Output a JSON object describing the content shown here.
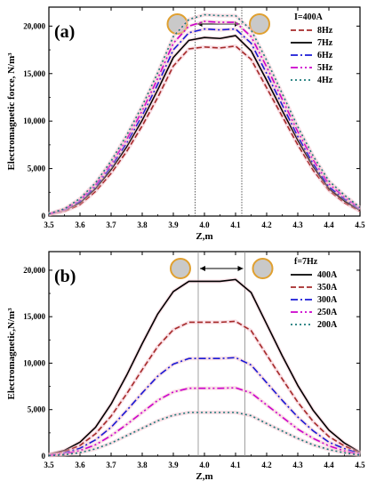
{
  "chart_data": [
    {
      "type": "line",
      "panel_label": "(a)",
      "xlabel": "Z,m",
      "ylabel": "Electromagnetic force, N/m³",
      "xlim": [
        3.5,
        4.5
      ],
      "ylim": [
        0,
        22000
      ],
      "xticks": [
        "3.5",
        "3.6",
        "3.7",
        "3.8",
        "3.9",
        "4.0",
        "4.1",
        "4.2",
        "4.3",
        "4.4",
        "4.5"
      ],
      "yticks": [
        "0",
        "5,000",
        "10,000",
        "15,000",
        "20,000"
      ],
      "legend_title": "I=400A",
      "legend_position": "top-right",
      "coil_markers": [
        3.97,
        4.12
      ],
      "x": [
        3.5,
        3.55,
        3.6,
        3.65,
        3.7,
        3.75,
        3.8,
        3.85,
        3.9,
        3.95,
        4.0,
        4.05,
        4.1,
        4.15,
        4.2,
        4.25,
        4.3,
        4.35,
        4.4,
        4.45,
        4.5
      ],
      "series": [
        {
          "name": "8Hz",
          "color": "#a52a2a",
          "dash": "6,3",
          "values": [
            150,
            500,
            1200,
            2600,
            4500,
            6800,
            9500,
            12500,
            15800,
            17600,
            17800,
            17700,
            17900,
            16500,
            13500,
            10500,
            7500,
            4800,
            2700,
            1400,
            500
          ]
        },
        {
          "name": "7Hz",
          "color": "#000000",
          "dash": "",
          "values": [
            180,
            600,
            1400,
            2900,
            4900,
            7300,
            10100,
            13300,
            16700,
            18500,
            18800,
            18700,
            19000,
            17400,
            14300,
            11100,
            8000,
            5200,
            2900,
            1600,
            600
          ]
        },
        {
          "name": "6Hz",
          "color": "#1a1ad6",
          "dash": "8,3,2,3",
          "values": [
            200,
            650,
            1550,
            3100,
            5200,
            7700,
            10600,
            13900,
            17500,
            19300,
            19700,
            19600,
            19700,
            18200,
            15000,
            11700,
            8400,
            5500,
            3100,
            1800,
            700
          ]
        },
        {
          "name": "5Hz",
          "color": "#cc00cc",
          "dash": "8,3,2,3,2,3",
          "values": [
            220,
            700,
            1700,
            3300,
            5500,
            8100,
            11100,
            14500,
            18200,
            20000,
            20500,
            20400,
            20400,
            18900,
            15700,
            12300,
            8900,
            5900,
            3400,
            2000,
            800
          ]
        },
        {
          "name": "4Hz",
          "color": "#1a7a7a",
          "dash": "2,3",
          "values": [
            240,
            760,
            1850,
            3500,
            5800,
            8500,
            11600,
            15100,
            18900,
            20700,
            21200,
            21100,
            21100,
            19600,
            16400,
            12900,
            9400,
            6300,
            3700,
            2200,
            900
          ]
        }
      ]
    },
    {
      "type": "line",
      "panel_label": "(b)",
      "xlabel": "Z,m",
      "ylabel": "Electromagnetic,N/m³",
      "xlim": [
        3.5,
        4.5
      ],
      "ylim": [
        0,
        22000
      ],
      "xticks": [
        "3.5",
        "3.6",
        "3.7",
        "3.8",
        "3.9",
        "4.0",
        "4.1",
        "4.2",
        "4.3",
        "4.4",
        "4.5"
      ],
      "yticks": [
        "0",
        "5,000",
        "10,000",
        "15,000",
        "20,000"
      ],
      "legend_title": "f=7Hz",
      "legend_position": "top-right",
      "coil_markers": [
        3.98,
        4.13
      ],
      "x": [
        3.5,
        3.55,
        3.6,
        3.65,
        3.7,
        3.75,
        3.8,
        3.85,
        3.9,
        3.95,
        4.0,
        4.05,
        4.1,
        4.15,
        4.2,
        4.25,
        4.3,
        4.35,
        4.4,
        4.45,
        4.5
      ],
      "series": [
        {
          "name": "400A",
          "color": "#000000",
          "dash": "",
          "values": [
            200,
            600,
            1500,
            3100,
            5600,
            8700,
            12100,
            15300,
            17700,
            18800,
            18800,
            18800,
            19000,
            17600,
            14200,
            10800,
            7600,
            4900,
            2800,
            1400,
            400
          ]
        },
        {
          "name": "350A",
          "color": "#a52a2a",
          "dash": "6,3",
          "values": [
            150,
            460,
            1150,
            2400,
            4300,
            6700,
            9300,
            11800,
            13600,
            14400,
            14400,
            14400,
            14500,
            13500,
            10900,
            8300,
            5800,
            3700,
            2100,
            1100,
            300
          ]
        },
        {
          "name": "300A",
          "color": "#1a1ad6",
          "dash": "8,3,2,3",
          "values": [
            110,
            340,
            840,
            1750,
            3100,
            4900,
            6800,
            8600,
            9900,
            10500,
            10500,
            10500,
            10600,
            9800,
            7900,
            6000,
            4200,
            2700,
            1500,
            800,
            250
          ]
        },
        {
          "name": "250A",
          "color": "#cc00cc",
          "dash": "8,3,2,3,2,3",
          "values": [
            80,
            240,
            590,
            1220,
            2200,
            3400,
            4700,
            6000,
            6900,
            7300,
            7300,
            7300,
            7350,
            6800,
            5500,
            4200,
            2900,
            1900,
            1100,
            550,
            150
          ]
        },
        {
          "name": "200A",
          "color": "#1a7a7a",
          "dash": "2,3",
          "values": [
            50,
            150,
            370,
            780,
            1400,
            2200,
            3000,
            3800,
            4400,
            4700,
            4700,
            4700,
            4700,
            4350,
            3500,
            2700,
            1900,
            1200,
            700,
            350,
            100
          ]
        }
      ]
    }
  ]
}
